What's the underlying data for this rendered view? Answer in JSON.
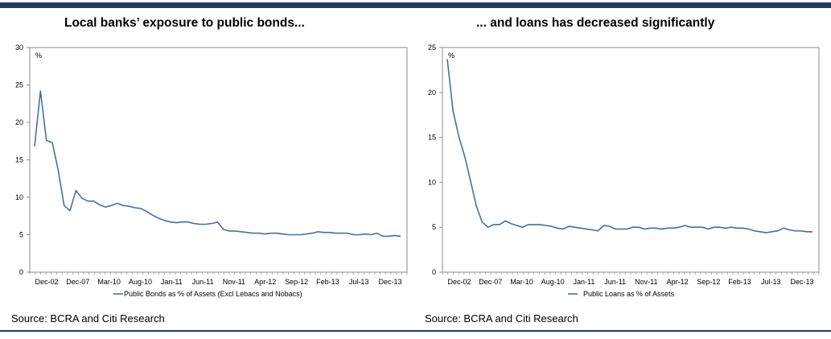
{
  "colors": {
    "rule": "#1f3a6b",
    "series": "#4a6ea0",
    "frame": "#8c8c8c"
  },
  "panels": [
    {
      "title": "Local banks’ exposure to public bonds...",
      "source": "Source: BCRA and Citi Research"
    },
    {
      "title": "... and loans has decreased significantly",
      "source": "Source: BCRA and Citi Research"
    }
  ],
  "chart_data": [
    {
      "type": "line",
      "title": "Local banks’ exposure to public bonds...",
      "unit": "%",
      "ylim": [
        0,
        30
      ],
      "yticks": [
        0,
        5,
        10,
        15,
        20,
        25,
        30
      ],
      "xlabels": [
        "Dec-02",
        "Dec-07",
        "Mar-10",
        "Aug-10",
        "Jan-11",
        "Jun-11",
        "Nov-11",
        "Apr-12",
        "Sep-12",
        "Feb-13",
        "Jul-13",
        "Dec-13"
      ],
      "grid": false,
      "legend": "bottom",
      "series": [
        {
          "name": "Public Bonds as % of Assets (Excl Lebacs and Nobacs)",
          "values": [
            16.8,
            24.2,
            17.6,
            17.3,
            13.6,
            8.9,
            8.2,
            10.9,
            9.9,
            9.5,
            9.5,
            9.0,
            8.7,
            8.9,
            9.2,
            8.9,
            8.8,
            8.6,
            8.5,
            8.1,
            7.6,
            7.2,
            6.9,
            6.7,
            6.6,
            6.7,
            6.7,
            6.5,
            6.4,
            6.4,
            6.5,
            6.7,
            5.7,
            5.5,
            5.5,
            5.4,
            5.3,
            5.2,
            5.2,
            5.1,
            5.2,
            5.2,
            5.1,
            5.0,
            5.0,
            5.0,
            5.1,
            5.2,
            5.4,
            5.3,
            5.3,
            5.2,
            5.2,
            5.2,
            5.0,
            5.0,
            5.1,
            5.0,
            5.2,
            4.8,
            4.8,
            4.9,
            4.8
          ]
        }
      ]
    },
    {
      "type": "line",
      "title": "... and loans has decreased significantly",
      "unit": "%",
      "ylim": [
        0,
        25
      ],
      "yticks": [
        0,
        5,
        10,
        15,
        20,
        25
      ],
      "xlabels": [
        "Dec-02",
        "Dec-07",
        "Mar-10",
        "Aug-10",
        "Jan-11",
        "Jun-11",
        "Nov-11",
        "Apr-12",
        "Sep-12",
        "Feb-13",
        "Jul-13",
        "Dec-13"
      ],
      "grid": false,
      "legend": "bottom",
      "series": [
        {
          "name": "Public Loans as % of Assets",
          "values": [
            23.7,
            17.9,
            15.1,
            12.9,
            10.2,
            7.4,
            5.6,
            5.0,
            5.3,
            5.3,
            5.7,
            5.4,
            5.2,
            5.0,
            5.3,
            5.3,
            5.3,
            5.2,
            5.1,
            4.9,
            4.8,
            5.1,
            5.0,
            4.9,
            4.8,
            4.7,
            4.6,
            5.2,
            5.1,
            4.8,
            4.8,
            4.8,
            5.0,
            5.0,
            4.8,
            4.9,
            4.9,
            4.8,
            4.9,
            4.9,
            5.0,
            5.2,
            5.0,
            5.0,
            5.0,
            4.8,
            5.0,
            5.0,
            4.9,
            5.0,
            4.9,
            4.9,
            4.8,
            4.6,
            4.5,
            4.4,
            4.5,
            4.6,
            4.9,
            4.7,
            4.6,
            4.6,
            4.5,
            4.5
          ]
        }
      ]
    }
  ]
}
